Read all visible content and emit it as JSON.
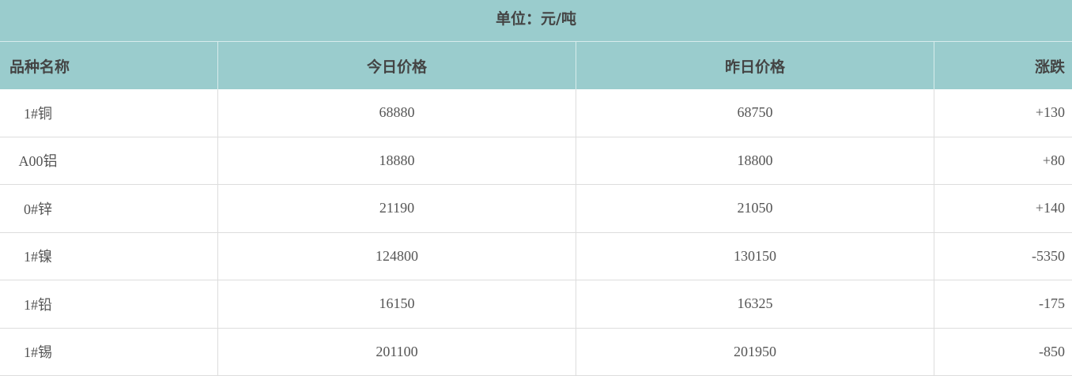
{
  "unit_label": "单位：元/吨",
  "headers": [
    "品种名称",
    "今日价格",
    "昨日价格",
    "涨跌"
  ],
  "rows": [
    {
      "name": "1#铜",
      "today": "68880",
      "yesterday": "68750",
      "change": "+130"
    },
    {
      "name": "A00铝",
      "today": "18880",
      "yesterday": "18800",
      "change": "+80"
    },
    {
      "name": "0#锌",
      "today": "21190",
      "yesterday": "21050",
      "change": "+140"
    },
    {
      "name": "1#镍",
      "today": "124800",
      "yesterday": "130150",
      "change": "-5350"
    },
    {
      "name": "1#铅",
      "today": "16150",
      "yesterday": "16325",
      "change": "-175"
    },
    {
      "name": "1#锡",
      "today": "201100",
      "yesterday": "201950",
      "change": "-850"
    }
  ],
  "colors": {
    "header_bg": "#9acccd",
    "border": "#dddddd"
  }
}
